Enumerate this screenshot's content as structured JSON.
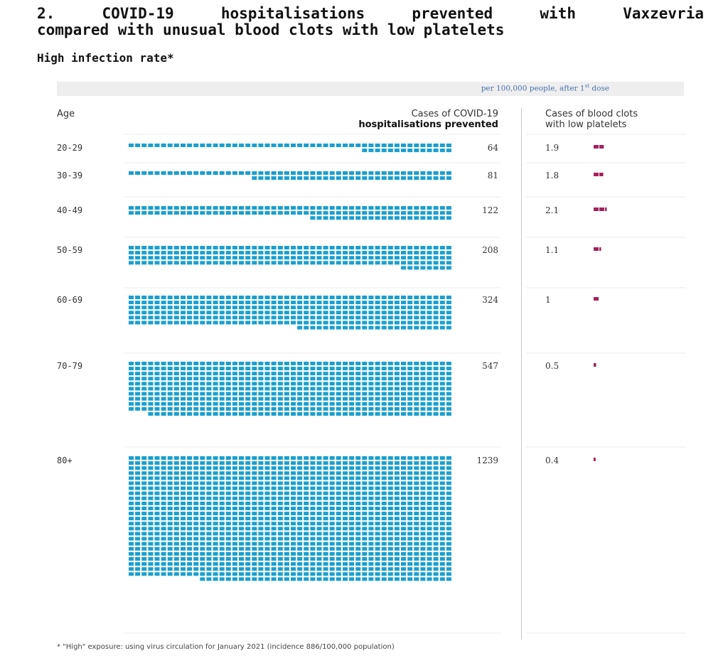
{
  "header": {
    "title_line1": "2. COVID-19 hospitalisations prevented with Vaxzevria",
    "title_line2": "compared with unusual blood clots with low platelets",
    "subtitle": "High infection rate*"
  },
  "unit_note": {
    "text": "per 100,000 people, after 1",
    "superscript": "st",
    "suffix": " dose"
  },
  "columns": {
    "age": "Age",
    "hosp_line1": "Cases of COVID-19",
    "hosp_line2": "hospitalisations prevented",
    "clots_line1": "Cases of blood clots",
    "clots_line2": "with low platelets"
  },
  "colors": {
    "hospitalisations": "#1a9fd0",
    "clots": "#a3215c"
  },
  "chart_data": {
    "type": "table",
    "categories": [
      "20-29",
      "30-39",
      "40-49",
      "50-59",
      "60-69",
      "70-79",
      "80+"
    ],
    "series": [
      {
        "name": "Cases of COVID-19 hospitalisations prevented",
        "values": [
          64,
          81,
          122,
          208,
          324,
          547,
          1239
        ],
        "labels": [
          "64",
          "81",
          "122",
          "208",
          "324",
          "547",
          "1239"
        ]
      },
      {
        "name": "Cases of blood clots with low platelets",
        "values": [
          1.9,
          1.8,
          2.1,
          1.1,
          1,
          0.5,
          0.4
        ],
        "labels": [
          "1.9",
          "1.8",
          "2.1",
          "1.1",
          "1",
          "0.5",
          "0.4"
        ]
      }
    ]
  },
  "footnote": "* \"High\" exposure: using virus circulation for January 2021 (incidence 886/100,000 population)"
}
